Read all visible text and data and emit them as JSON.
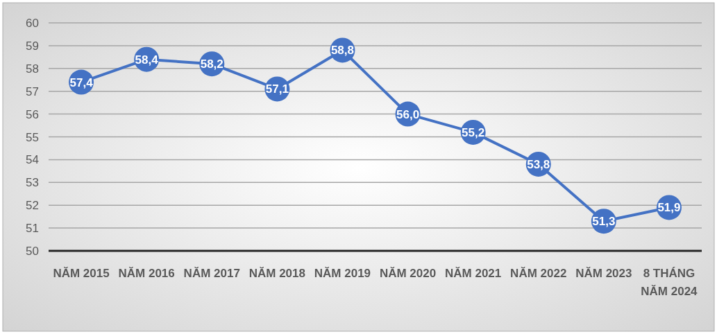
{
  "chart_data": {
    "type": "line",
    "categories": [
      "NĂM 2015",
      "NĂM 2016",
      "NĂM 2017",
      "NĂM 2018",
      "NĂM 2019",
      "NĂM 2020",
      "NĂM 2021",
      "NĂM 2022",
      "NĂM 2023",
      "8 THÁNG NĂM 2024"
    ],
    "series": [
      {
        "color": "#4472c4",
        "values": [
          57.4,
          58.4,
          58.2,
          57.1,
          58.8,
          56.0,
          55.2,
          53.8,
          51.3,
          51.9
        ],
        "value_labels": [
          "57,4",
          "58,4",
          "58,2",
          "57,1",
          "58,8",
          "56,0",
          "55,2",
          "53,8",
          "51,3",
          "51,9"
        ]
      }
    ],
    "ylim": [
      50,
      60
    ],
    "yticks": [
      50,
      51,
      52,
      53,
      54,
      55,
      56,
      57,
      58,
      59,
      60
    ],
    "grid": "y",
    "marker": "circle",
    "line_style": "solid"
  }
}
